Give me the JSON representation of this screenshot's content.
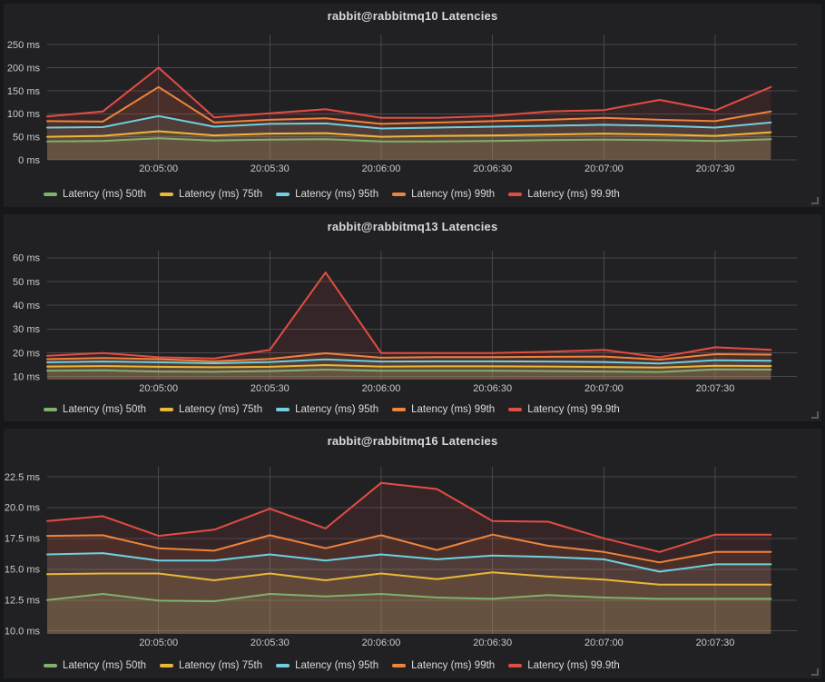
{
  "dashboard": {
    "background": "#161719",
    "panel_background": "#212124",
    "text_color": "#d8d9da",
    "grid_color": "#46484d"
  },
  "chart_data": [
    {
      "type": "area",
      "title": "rabbit@rabbitmq10 Latencies",
      "xlabel": "",
      "ylabel": "",
      "grid": true,
      "legend_position": "bottom-left",
      "xlim": [
        "20:04:30",
        "20:07:52"
      ],
      "ylim": [
        0,
        272
      ],
      "ytick_values": [
        0,
        50,
        100,
        150,
        200,
        250
      ],
      "ytick_labels": [
        "0 ms",
        "50 ms",
        "100 ms",
        "150 ms",
        "200 ms",
        "250 ms"
      ],
      "xticks": [
        "20:05:00",
        "20:05:30",
        "20:06:00",
        "20:06:30",
        "20:07:00",
        "20:07:30"
      ],
      "x": [
        "20:04:30",
        "20:04:45",
        "20:05:00",
        "20:05:15",
        "20:05:30",
        "20:05:45",
        "20:06:00",
        "20:06:15",
        "20:06:30",
        "20:06:45",
        "20:07:00",
        "20:07:15",
        "20:07:30",
        "20:07:45"
      ],
      "series": [
        {
          "name": "Latency (ms) 50th",
          "color": "#7EB26D",
          "values": [
            40,
            41,
            47,
            42,
            44,
            45,
            40,
            40,
            41,
            43,
            44,
            43,
            41,
            45
          ]
        },
        {
          "name": "Latency (ms) 75th",
          "color": "#EAB839",
          "values": [
            50,
            52,
            62,
            53,
            57,
            58,
            50,
            52,
            53,
            55,
            57,
            55,
            52,
            60
          ]
        },
        {
          "name": "Latency (ms) 95th",
          "color": "#6ED0E0",
          "values": [
            70,
            71,
            95,
            72,
            78,
            79,
            68,
            70,
            72,
            74,
            76,
            74,
            70,
            81
          ]
        },
        {
          "name": "Latency (ms) 99th",
          "color": "#EF843C",
          "values": [
            84,
            83,
            158,
            81,
            87,
            90,
            78,
            81,
            84,
            87,
            91,
            87,
            84,
            105
          ]
        },
        {
          "name": "Latency (ms) 99.9th",
          "color": "#E24D42",
          "values": [
            94,
            105,
            200,
            92,
            101,
            110,
            91,
            91,
            95,
            105,
            108,
            130,
            107,
            158
          ]
        }
      ]
    },
    {
      "type": "area",
      "title": "rabbit@rabbitmq13 Latencies",
      "xlabel": "",
      "ylabel": "",
      "grid": true,
      "legend_position": "bottom-left",
      "xlim": [
        "20:04:30",
        "20:07:52"
      ],
      "ylim": [
        8.7,
        63
      ],
      "ytick_values": [
        10,
        20,
        30,
        40,
        50,
        60
      ],
      "ytick_labels": [
        "10 ms",
        "20 ms",
        "30 ms",
        "40 ms",
        "50 ms",
        "60 ms"
      ],
      "xticks": [
        "20:05:00",
        "20:05:30",
        "20:06:00",
        "20:06:30",
        "20:07:00",
        "20:07:30"
      ],
      "x": [
        "20:04:30",
        "20:04:45",
        "20:05:00",
        "20:05:15",
        "20:05:30",
        "20:05:45",
        "20:06:00",
        "20:06:15",
        "20:06:30",
        "20:06:45",
        "20:07:00",
        "20:07:15",
        "20:07:30",
        "20:07:45"
      ],
      "series": [
        {
          "name": "Latency (ms) 50th",
          "color": "#7EB26D",
          "values": [
            12.4,
            12.6,
            12.1,
            12.0,
            12.3,
            12.9,
            12.4,
            12.4,
            12.4,
            12.3,
            12.1,
            11.9,
            13.0,
            12.9
          ]
        },
        {
          "name": "Latency (ms) 75th",
          "color": "#EAB839",
          "values": [
            14.2,
            14.4,
            14.1,
            13.9,
            14.1,
            14.8,
            14.2,
            14.3,
            14.3,
            14.2,
            14.0,
            13.8,
            14.5,
            14.4
          ]
        },
        {
          "name": "Latency (ms) 95th",
          "color": "#6ED0E0",
          "values": [
            16.0,
            16.3,
            16.0,
            15.6,
            16.1,
            17.2,
            16.3,
            16.4,
            16.4,
            16.3,
            16.1,
            15.5,
            16.9,
            16.6
          ]
        },
        {
          "name": "Latency (ms) 99th",
          "color": "#EF843C",
          "values": [
            17.3,
            17.8,
            17.3,
            16.4,
            17.4,
            19.8,
            17.9,
            18.2,
            18.2,
            18.3,
            18.4,
            17.1,
            19.4,
            19.2
          ]
        },
        {
          "name": "Latency (ms) 99.9th",
          "color": "#E24D42",
          "values": [
            18.7,
            19.9,
            18.1,
            17.6,
            21.2,
            53.8,
            19.9,
            19.9,
            19.9,
            20.4,
            21.2,
            18.1,
            22.3,
            21.2
          ]
        }
      ]
    },
    {
      "type": "area",
      "title": "rabbit@rabbitmq16 Latencies",
      "xlabel": "",
      "ylabel": "",
      "grid": true,
      "legend_position": "bottom-left",
      "xlim": [
        "20:04:30",
        "20:07:52"
      ],
      "ylim": [
        9.76,
        23.3
      ],
      "ytick_values": [
        10,
        12.5,
        15,
        17.5,
        20,
        22.5
      ],
      "ytick_labels": [
        "10.0 ms",
        "12.5 ms",
        "15.0 ms",
        "17.5 ms",
        "20.0 ms",
        "22.5 ms"
      ],
      "xticks": [
        "20:05:00",
        "20:05:30",
        "20:06:00",
        "20:06:30",
        "20:07:00",
        "20:07:30"
      ],
      "x": [
        "20:04:30",
        "20:04:45",
        "20:05:00",
        "20:05:15",
        "20:05:30",
        "20:05:45",
        "20:06:00",
        "20:06:15",
        "20:06:30",
        "20:06:45",
        "20:07:00",
        "20:07:15",
        "20:07:30",
        "20:07:45"
      ],
      "series": [
        {
          "name": "Latency (ms) 50th",
          "color": "#7EB26D",
          "values": [
            12.5,
            13.0,
            12.45,
            12.4,
            13.0,
            12.8,
            13.0,
            12.7,
            12.6,
            12.9,
            12.7,
            12.6,
            12.6,
            12.6
          ]
        },
        {
          "name": "Latency (ms) 75th",
          "color": "#EAB839",
          "values": [
            14.6,
            14.65,
            14.65,
            14.1,
            14.65,
            14.1,
            14.65,
            14.2,
            14.75,
            14.4,
            14.15,
            13.75,
            13.75,
            13.75
          ]
        },
        {
          "name": "Latency (ms) 95th",
          "color": "#6ED0E0",
          "values": [
            16.2,
            16.3,
            15.7,
            15.7,
            16.2,
            15.7,
            16.2,
            15.8,
            16.1,
            16.0,
            15.8,
            14.8,
            15.4,
            15.4
          ]
        },
        {
          "name": "Latency (ms) 99th",
          "color": "#EF843C",
          "values": [
            17.7,
            17.75,
            16.7,
            16.5,
            17.75,
            16.7,
            17.75,
            16.55,
            17.8,
            16.9,
            16.4,
            15.55,
            16.4,
            16.4
          ]
        },
        {
          "name": "Latency (ms) 99.9th",
          "color": "#E24D42",
          "values": [
            18.9,
            19.3,
            17.7,
            18.2,
            19.9,
            18.3,
            22.0,
            21.5,
            18.9,
            18.85,
            17.5,
            16.4,
            17.8,
            17.8
          ]
        }
      ]
    }
  ]
}
